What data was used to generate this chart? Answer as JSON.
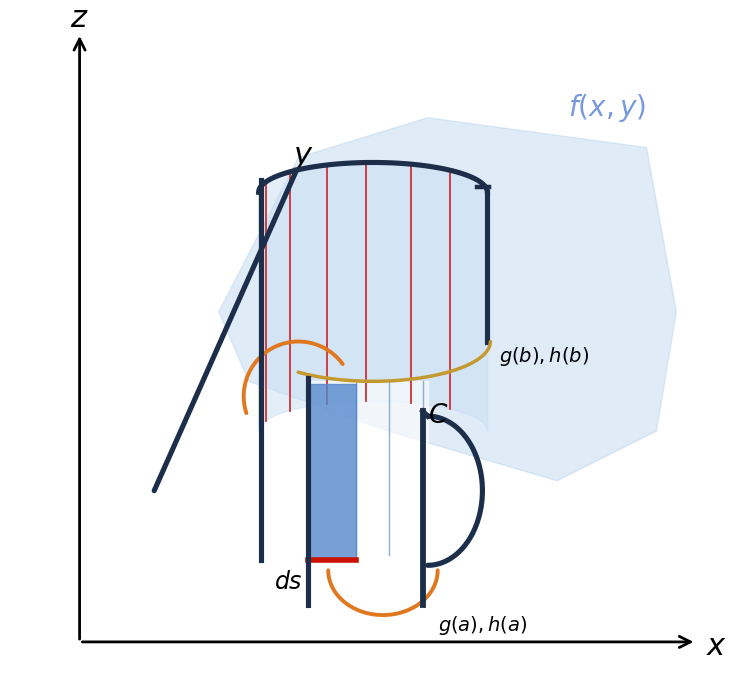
{
  "bg_color": "#ffffff",
  "dark_curve_color": "#1c2e4a",
  "surface_color": "#b8d4ee",
  "surface_alpha": 0.45,
  "fence_fill_color": "#c8dff5",
  "fence_fill_alpha": 0.6,
  "red_lines_color": "#cc3333",
  "blue_lines_color": "#6699cc",
  "blue_fill_color": "#5588cc",
  "blue_fill_alpha": 0.8,
  "orange_color": "#e07820",
  "ds_red_color": "#cc1100",
  "gold_color": "#c49a30",
  "label_color_blue": "#7799dd",
  "dark_lw": 3.2,
  "orange_lw": 2.8,
  "gold_lw": 2.5
}
